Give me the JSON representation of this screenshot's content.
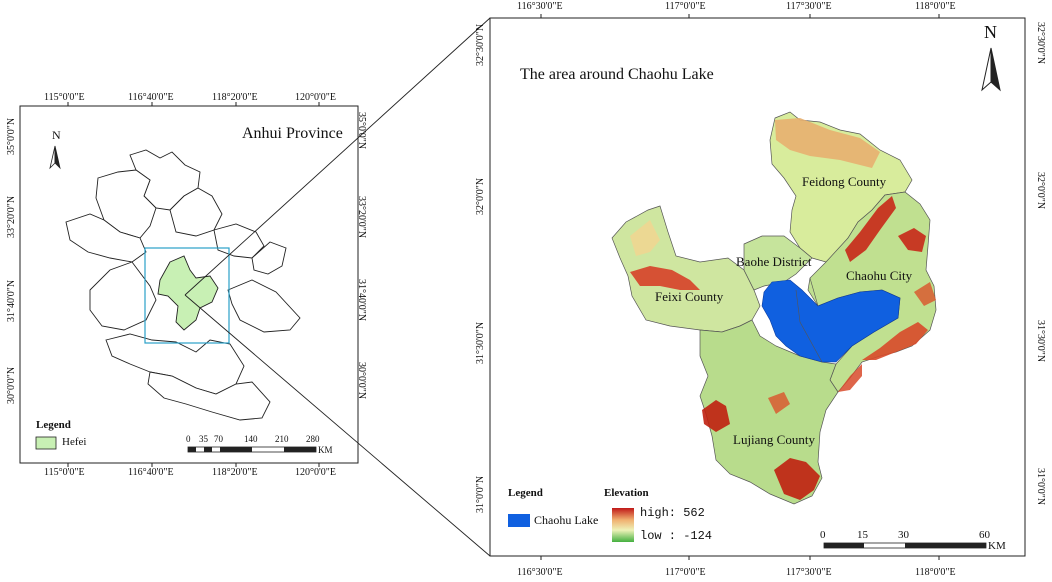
{
  "left_map": {
    "title": "Anhui Province",
    "north_label": "N",
    "top_ticks": [
      "115°0'0\"E",
      "116°40'0\"E",
      "118°20'0\"E",
      "120°0'0\"E"
    ],
    "bottom_ticks": [
      "115°0'0\"E",
      "116°40'0\"E",
      "118°20'0\"E",
      "120°0'0\"E"
    ],
    "left_ticks": [
      "35°0'0\"N",
      "33°20'0\"N",
      "31°40'0\"N",
      "30°0'0\"N"
    ],
    "right_ticks": [
      "35°0'0\"N",
      "33°20'0\"N",
      "31°40'0\"N",
      "30°0'0\"N"
    ],
    "legend": {
      "title": "Legend",
      "item": "Hefei",
      "item_color": "#c8f0b4"
    },
    "scalebar": {
      "labels": [
        "0",
        "35",
        "70",
        "140",
        "210",
        "280"
      ],
      "unit": "KM"
    }
  },
  "right_map": {
    "title": "The area around Chaohu Lake",
    "north_label": "N",
    "top_ticks": [
      "116°30'0\"E",
      "117°0'0\"E",
      "117°30'0\"E",
      "118°0'0\"E"
    ],
    "bottom_ticks": [
      "116°30'0\"E",
      "117°0'0\"E",
      "117°30'0\"E",
      "118°0'0\"E"
    ],
    "left_ticks": [
      "32°30'0\"N",
      "32°0'0\"N",
      "31°30'0\"N",
      "31°0'0\"N"
    ],
    "right_ticks": [
      "32°30'0\"N",
      "32°0'0\"N",
      "31°30'0\"N",
      "31°0'0\"N"
    ],
    "places": {
      "feidong": "Feidong County",
      "baohe": "Baohe District",
      "chaohu_city": "Chaohu City",
      "feixi": "Feixi County",
      "lujiang": "Lujiang County"
    },
    "legend": {
      "title": "Legend",
      "lake_label": "Chaohu Lake",
      "lake_color": "#1060e0",
      "elevation_title": "Elevation",
      "high_label": "high: 562",
      "low_label": "low : -124"
    },
    "scalebar": {
      "labels": [
        "0",
        "15",
        "30",
        "60"
      ],
      "unit": "KM"
    }
  }
}
